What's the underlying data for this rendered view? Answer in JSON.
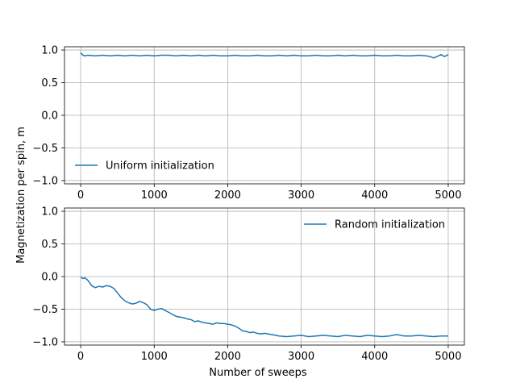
{
  "chart_data": [
    {
      "type": "line",
      "title": "",
      "xlabel": "",
      "ylabel": "",
      "xlim": [
        -220,
        5220
      ],
      "ylim": [
        -1.05,
        1.05
      ],
      "xticks": [
        0,
        1000,
        2000,
        3000,
        4000,
        5000
      ],
      "yticks": [
        -1.0,
        -0.5,
        0.0,
        0.5,
        1.0
      ],
      "xtick_labels": [
        "0",
        "1000",
        "2000",
        "3000",
        "4000",
        "5000"
      ],
      "ytick_labels": [
        "−1.0",
        "−0.5",
        "0.0",
        "0.5",
        "1.0"
      ],
      "grid": true,
      "legend": {
        "location": "lower-left",
        "entries": [
          "Uniform initialization"
        ]
      },
      "series": [
        {
          "name": "Uniform initialization",
          "color": "#1f77b4",
          "x": [
            0,
            20,
            50,
            100,
            200,
            300,
            400,
            500,
            600,
            700,
            800,
            900,
            1000,
            1100,
            1200,
            1300,
            1400,
            1500,
            1600,
            1700,
            1800,
            1900,
            2000,
            2100,
            2200,
            2300,
            2400,
            2500,
            2600,
            2700,
            2800,
            2900,
            3000,
            3100,
            3200,
            3300,
            3400,
            3500,
            3600,
            3700,
            3800,
            3900,
            4000,
            4100,
            4200,
            4300,
            4400,
            4500,
            4600,
            4700,
            4750,
            4800,
            4850,
            4900,
            4950,
            5000
          ],
          "y": [
            0.96,
            0.93,
            0.91,
            0.92,
            0.91,
            0.92,
            0.91,
            0.92,
            0.91,
            0.92,
            0.91,
            0.92,
            0.91,
            0.92,
            0.92,
            0.91,
            0.92,
            0.91,
            0.92,
            0.91,
            0.92,
            0.91,
            0.91,
            0.92,
            0.91,
            0.91,
            0.92,
            0.91,
            0.91,
            0.92,
            0.91,
            0.92,
            0.91,
            0.91,
            0.92,
            0.91,
            0.91,
            0.92,
            0.91,
            0.92,
            0.91,
            0.91,
            0.92,
            0.91,
            0.91,
            0.92,
            0.91,
            0.91,
            0.92,
            0.91,
            0.9,
            0.88,
            0.9,
            0.93,
            0.9,
            0.93
          ]
        }
      ]
    },
    {
      "type": "line",
      "title": "",
      "xlabel": "Number of sweeps",
      "ylabel": "",
      "xlim": [
        -220,
        5220
      ],
      "ylim": [
        -1.05,
        1.05
      ],
      "xticks": [
        0,
        1000,
        2000,
        3000,
        4000,
        5000
      ],
      "yticks": [
        -1.0,
        -0.5,
        0.0,
        0.5,
        1.0
      ],
      "xtick_labels": [
        "0",
        "1000",
        "2000",
        "3000",
        "4000",
        "5000"
      ],
      "ytick_labels": [
        "−1.0",
        "−0.5",
        "0.0",
        "0.5",
        "1.0"
      ],
      "grid": true,
      "legend": {
        "location": "upper-right",
        "entries": [
          "Random initialization"
        ]
      },
      "series": [
        {
          "name": "Random initialization",
          "color": "#1f77b4",
          "x": [
            0,
            30,
            60,
            100,
            150,
            200,
            250,
            300,
            350,
            400,
            450,
            500,
            550,
            600,
            650,
            700,
            750,
            800,
            850,
            900,
            950,
            1000,
            1050,
            1100,
            1150,
            1200,
            1250,
            1300,
            1350,
            1400,
            1450,
            1500,
            1550,
            1600,
            1650,
            1700,
            1750,
            1800,
            1850,
            1900,
            1950,
            2000,
            2050,
            2100,
            2150,
            2200,
            2250,
            2300,
            2350,
            2400,
            2450,
            2500,
            2550,
            2600,
            2650,
            2700,
            2800,
            2900,
            3000,
            3100,
            3200,
            3300,
            3400,
            3500,
            3600,
            3700,
            3800,
            3900,
            4000,
            4100,
            4200,
            4300,
            4400,
            4500,
            4600,
            4700,
            4800,
            4900,
            5000
          ],
          "y": [
            -0.01,
            -0.03,
            -0.02,
            -0.06,
            -0.14,
            -0.17,
            -0.15,
            -0.16,
            -0.14,
            -0.15,
            -0.18,
            -0.25,
            -0.32,
            -0.37,
            -0.4,
            -0.42,
            -0.41,
            -0.38,
            -0.4,
            -0.43,
            -0.5,
            -0.52,
            -0.5,
            -0.49,
            -0.52,
            -0.55,
            -0.58,
            -0.61,
            -0.62,
            -0.63,
            -0.65,
            -0.66,
            -0.69,
            -0.68,
            -0.7,
            -0.71,
            -0.72,
            -0.73,
            -0.71,
            -0.72,
            -0.72,
            -0.73,
            -0.74,
            -0.76,
            -0.79,
            -0.83,
            -0.84,
            -0.86,
            -0.85,
            -0.87,
            -0.88,
            -0.87,
            -0.88,
            -0.89,
            -0.9,
            -0.91,
            -0.92,
            -0.91,
            -0.9,
            -0.92,
            -0.91,
            -0.9,
            -0.91,
            -0.92,
            -0.9,
            -0.91,
            -0.92,
            -0.9,
            -0.91,
            -0.92,
            -0.91,
            -0.89,
            -0.91,
            -0.91,
            -0.9,
            -0.91,
            -0.92,
            -0.91,
            -0.91
          ]
        }
      ]
    }
  ],
  "figure": {
    "ylabel": "Magnetization per spin, m"
  }
}
